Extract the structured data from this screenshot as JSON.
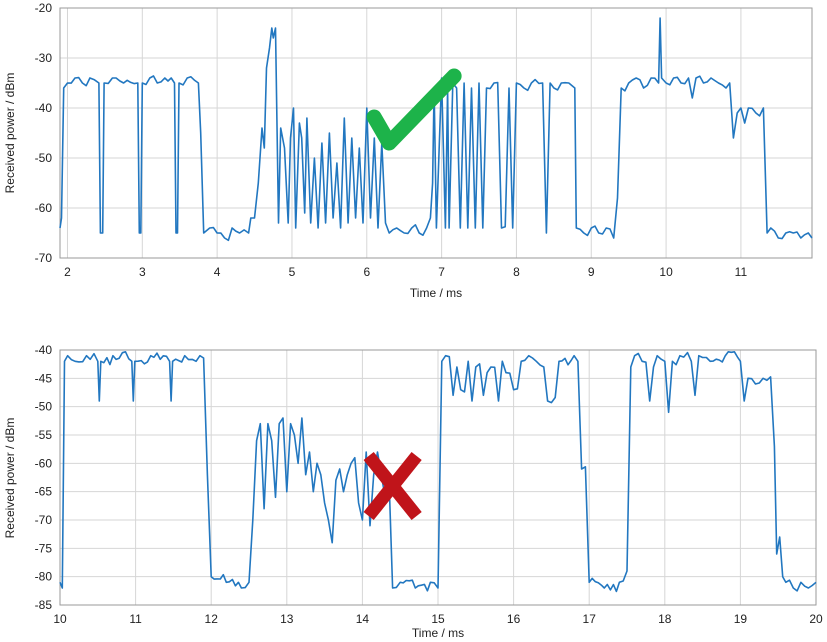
{
  "colors": {
    "trace": "#2277c0",
    "check": "#1db34a",
    "cross": "#c0141a"
  },
  "chart_data": [
    {
      "type": "line",
      "xlabel": "Time / ms",
      "ylabel": "Received power / dBm",
      "xlim": [
        1.9,
        11.95
      ],
      "ylim": [
        -70,
        -20
      ],
      "xticks": [
        2,
        3,
        4,
        5,
        6,
        7,
        8,
        9,
        10,
        11
      ],
      "yticks": [
        -70,
        -60,
        -50,
        -40,
        -30,
        -20
      ],
      "grid": true,
      "marker": "check-icon",
      "marker_x": 6.9,
      "marker_y": -43,
      "series": [
        {
          "x": [
            1.9,
            1.92,
            1.95,
            2.0,
            2.1,
            2.2,
            2.3,
            2.42,
            2.44,
            2.47,
            2.49,
            2.6,
            2.75,
            2.94,
            2.96,
            2.98,
            3.0,
            3.1,
            3.2,
            3.3,
            3.43,
            3.45,
            3.47,
            3.49,
            3.6,
            3.75,
            3.78,
            3.82,
            3.9,
            4.0,
            4.1,
            4.2,
            4.3,
            4.42,
            4.45,
            4.5,
            4.55,
            4.6,
            4.63,
            4.66,
            4.7,
            4.73,
            4.75,
            4.78,
            4.82,
            4.85,
            4.9,
            4.95,
            4.98,
            5.02,
            5.05,
            5.1,
            5.13,
            5.17,
            5.2,
            5.25,
            5.3,
            5.35,
            5.4,
            5.45,
            5.5,
            5.55,
            5.6,
            5.65,
            5.7,
            5.75,
            5.8,
            5.85,
            5.9,
            5.95,
            6.0,
            6.05,
            6.1,
            6.15,
            6.2,
            6.25,
            6.3,
            6.4,
            6.5,
            6.6,
            6.7,
            6.8,
            6.85,
            6.88,
            6.9,
            6.93,
            7.0,
            7.05,
            7.08,
            7.1,
            7.15,
            7.2,
            7.25,
            7.3,
            7.35,
            7.4,
            7.45,
            7.5,
            7.55,
            7.6,
            7.7,
            7.8,
            7.9,
            7.95,
            8.0,
            8.1,
            8.2,
            8.35,
            8.4,
            8.45,
            8.5,
            8.6,
            8.7,
            8.78,
            8.8,
            8.9,
            9.0,
            9.1,
            9.2,
            9.3,
            9.35,
            9.4,
            9.5,
            9.6,
            9.7,
            9.8,
            9.9,
            9.92,
            9.94,
            10.0,
            10.1,
            10.2,
            10.3,
            10.35,
            10.4,
            10.5,
            10.6,
            10.7,
            10.8,
            10.85,
            10.9,
            10.95,
            11.0,
            11.05,
            11.1,
            11.2,
            11.3,
            11.35,
            11.4,
            11.5,
            11.6,
            11.7,
            11.8,
            11.9,
            11.95
          ],
          "y": [
            -64,
            -62,
            -36,
            -35,
            -34,
            -35,
            -34,
            -35,
            -65,
            -65,
            -35,
            -34,
            -35,
            -35,
            -65,
            -65,
            -35,
            -34,
            -35,
            -34,
            -35,
            -65,
            -65,
            -35,
            -34,
            -35,
            -45,
            -65,
            -64,
            -65,
            -66,
            -64,
            -65,
            -65,
            -62,
            -62,
            -55,
            -44,
            -48,
            -32,
            -28,
            -24,
            -26,
            -24,
            -63,
            -44,
            -48,
            -63,
            -46,
            -40,
            -64,
            -43,
            -46,
            -61,
            -42,
            -63,
            -50,
            -64,
            -47,
            -63,
            -45,
            -62,
            -51,
            -64,
            -42,
            -63,
            -46,
            -62,
            -48,
            -63,
            -40,
            -62,
            -46,
            -64,
            -47,
            -63,
            -65,
            -64,
            -65,
            -64,
            -65,
            -64,
            -62,
            -55,
            -36,
            -64,
            -34,
            -64,
            -36,
            -64,
            -35,
            -36,
            -64,
            -35,
            -64,
            -36,
            -64,
            -35,
            -64,
            -36,
            -35,
            -64,
            -36,
            -64,
            -35,
            -36,
            -35,
            -35,
            -65,
            -35,
            -36,
            -35,
            -35,
            -36,
            -64,
            -65,
            -64,
            -65,
            -64,
            -66,
            -58,
            -36,
            -35,
            -34,
            -36,
            -34,
            -35,
            -22,
            -34,
            -35,
            -34,
            -35,
            -34,
            -38,
            -34,
            -35,
            -34,
            -35,
            -36,
            -35,
            -46,
            -41,
            -40,
            -43,
            -40,
            -41,
            -40,
            -65,
            -64,
            -66,
            -65,
            -65,
            -66,
            -65,
            -66
          ]
        }
      ]
    },
    {
      "type": "line",
      "xlabel": "Time / ms",
      "ylabel": "Received power / dBm",
      "xlim": [
        10,
        20
      ],
      "ylim": [
        -85,
        -40
      ],
      "xticks": [
        10,
        11,
        12,
        13,
        14,
        15,
        16,
        17,
        18,
        19,
        20
      ],
      "yticks": [
        -85,
        -80,
        -75,
        -70,
        -65,
        -60,
        -55,
        -50,
        -45,
        -40
      ],
      "grid": true,
      "marker": "cross-icon",
      "marker_x": 14.4,
      "marker_y": -64,
      "series": [
        {
          "x": [
            10.0,
            10.03,
            10.06,
            10.1,
            10.2,
            10.35,
            10.5,
            10.52,
            10.54,
            10.7,
            10.95,
            10.97,
            10.99,
            11.2,
            11.45,
            11.47,
            11.49,
            11.65,
            11.8,
            11.85,
            11.95,
            12.0,
            12.2,
            12.4,
            12.5,
            12.55,
            12.6,
            12.65,
            12.7,
            12.75,
            12.8,
            12.85,
            12.9,
            12.95,
            13.0,
            13.05,
            13.1,
            13.15,
            13.2,
            13.25,
            13.3,
            13.35,
            13.4,
            13.45,
            13.5,
            13.55,
            13.6,
            13.65,
            13.7,
            13.75,
            13.8,
            13.85,
            13.9,
            13.95,
            14.0,
            14.05,
            14.1,
            14.15,
            14.2,
            14.25,
            14.3,
            14.35,
            14.4,
            14.5,
            14.7,
            14.9,
            15.0,
            15.05,
            15.1,
            15.2,
            15.25,
            15.3,
            15.4,
            15.45,
            15.5,
            15.6,
            15.65,
            15.7,
            15.8,
            15.85,
            15.9,
            16.0,
            16.1,
            16.2,
            16.3,
            16.4,
            16.45,
            16.6,
            16.8,
            16.85,
            16.9,
            17.0,
            17.2,
            17.4,
            17.5,
            17.55,
            17.6,
            17.7,
            17.8,
            17.85,
            17.9,
            18.0,
            18.05,
            18.1,
            18.2,
            18.35,
            18.4,
            18.45,
            18.6,
            18.8,
            19.0,
            19.05,
            19.1,
            19.2,
            19.3,
            19.45,
            19.48,
            19.52,
            19.56,
            19.6,
            19.7,
            19.8,
            19.9,
            20.0
          ],
          "y": [
            -81,
            -82,
            -42,
            -41,
            -42,
            -41,
            -42,
            -49,
            -42,
            -41,
            -42,
            -49,
            -42,
            -41,
            -42,
            -49,
            -42,
            -41,
            -42,
            -41,
            -62,
            -80,
            -81,
            -82,
            -81,
            -70,
            -56,
            -53,
            -68,
            -53,
            -56,
            -66,
            -53,
            -52,
            -65,
            -53,
            -55,
            -60,
            -52,
            -62,
            -58,
            -65,
            -60,
            -62,
            -67,
            -70,
            -74,
            -63,
            -61,
            -65,
            -62,
            -60,
            -59,
            -67,
            -70,
            -58,
            -71,
            -62,
            -58,
            -62,
            -66,
            -62,
            -82,
            -81,
            -82,
            -81,
            -82,
            -42,
            -41,
            -48,
            -43,
            -47,
            -42,
            -49,
            -43,
            -48,
            -44,
            -43,
            -49,
            -42,
            -44,
            -47,
            -42,
            -41,
            -42,
            -43,
            -49,
            -42,
            -41,
            -42,
            -61,
            -81,
            -82,
            -81,
            -79,
            -43,
            -41,
            -42,
            -49,
            -43,
            -41,
            -42,
            -51,
            -42,
            -41,
            -42,
            -48,
            -41,
            -42,
            -41,
            -42,
            -49,
            -45,
            -46,
            -45,
            -57,
            -76,
            -73,
            -80,
            -81,
            -82,
            -81,
            -82,
            -81
          ]
        }
      ]
    }
  ]
}
